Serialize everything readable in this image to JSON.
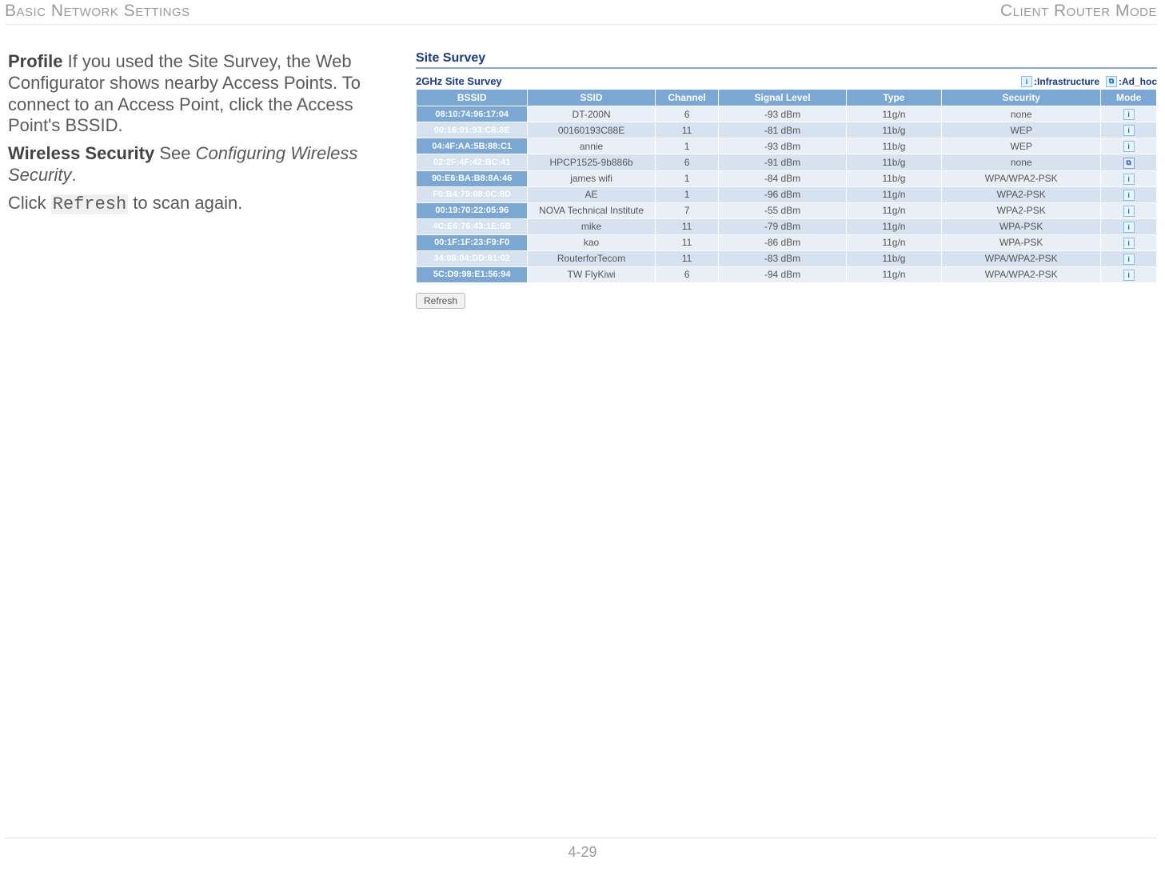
{
  "header": {
    "left": "Basic Network Settings",
    "right": "Client Router Mode"
  },
  "pageNumber": "4-29",
  "left": {
    "p1_bold": "Profile",
    "p1_rest": "  If you used the Site Survey, the Web Configurator shows nearby Access Points. To connect to an Access Point, click the Access Point's BSSID.",
    "p2_bold": "Wireless Security",
    "p2_mid": "  See ",
    "p2_ital": "Configuring Wireless Security",
    "p2_end": ".",
    "p3_pre": "Click ",
    "p3_code": "Refresh",
    "p3_post": " to scan again."
  },
  "survey": {
    "title": "Site Survey",
    "subtitle": "2GHz Site Survey",
    "legend_infra": ":Infrastructure",
    "legend_adhoc": ":Ad_hoc",
    "columns": [
      "BSSID",
      "SSID",
      "Channel",
      "Signal Level",
      "Type",
      "Security",
      "Mode"
    ],
    "col_widths": [
      "14%",
      "16%",
      "8%",
      "16%",
      "12%",
      "20%",
      "7%"
    ],
    "rows": [
      {
        "bssid": "08:10:74:96:17:04",
        "ssid": "DT-200N",
        "ch": "6",
        "sig": "-93 dBm",
        "type": "11g/n",
        "sec": "none",
        "mode": "i"
      },
      {
        "bssid": "00:16:01:93:C8:8E",
        "ssid": "00160193C88E",
        "ch": "11",
        "sig": "-81 dBm",
        "type": "11b/g",
        "sec": "WEP",
        "mode": "i"
      },
      {
        "bssid": "04:4F:AA:5B:88:C1",
        "ssid": "annie",
        "ch": "1",
        "sig": "-93 dBm",
        "type": "11b/g",
        "sec": "WEP",
        "mode": "i"
      },
      {
        "bssid": "02:2F:4F:42:BC:41",
        "ssid": "HPCP1525-9b886b",
        "ch": "6",
        "sig": "-91 dBm",
        "type": "11b/g",
        "sec": "none",
        "mode": "a"
      },
      {
        "bssid": "90:E6:BA:B8:8A:46",
        "ssid": "james wifi",
        "ch": "1",
        "sig": "-84 dBm",
        "type": "11b/g",
        "sec": "WPA/WPA2-PSK",
        "mode": "i"
      },
      {
        "bssid": "F0:B4:79:08:0C:8D",
        "ssid": "AE",
        "ch": "1",
        "sig": "-96 dBm",
        "type": "11g/n",
        "sec": "WPA2-PSK",
        "mode": "i"
      },
      {
        "bssid": "00:19:70:22:05:96",
        "ssid": "NOVA Technical Institute",
        "ch": "7",
        "sig": "-55 dBm",
        "type": "11g/n",
        "sec": "WPA2-PSK",
        "mode": "i"
      },
      {
        "bssid": "4C:E6:76:43:1E:6B",
        "ssid": "mike",
        "ch": "11",
        "sig": "-79 dBm",
        "type": "11g/n",
        "sec": "WPA-PSK",
        "mode": "i"
      },
      {
        "bssid": "00:1F:1F:23:F9:F0",
        "ssid": "kao",
        "ch": "11",
        "sig": "-86 dBm",
        "type": "11g/n",
        "sec": "WPA-PSK",
        "mode": "i"
      },
      {
        "bssid": "34:08:04:DD:81:02",
        "ssid": "RouterforTecom",
        "ch": "11",
        "sig": "-83 dBm",
        "type": "11b/g",
        "sec": "WPA/WPA2-PSK",
        "mode": "i"
      },
      {
        "bssid": "5C:D9:98:E1:56:94",
        "ssid": "TW FlyKiwi",
        "ch": "6",
        "sig": "-94 dBm",
        "type": "11g/n",
        "sec": "WPA/WPA2-PSK",
        "mode": "i"
      }
    ],
    "refresh_label": "Refresh"
  },
  "colors": {
    "header_blue": "#7aa7d4",
    "row_light": "#e9eff6",
    "row_dark": "#d6e2ef",
    "title_blue": "#1a3a8a"
  }
}
